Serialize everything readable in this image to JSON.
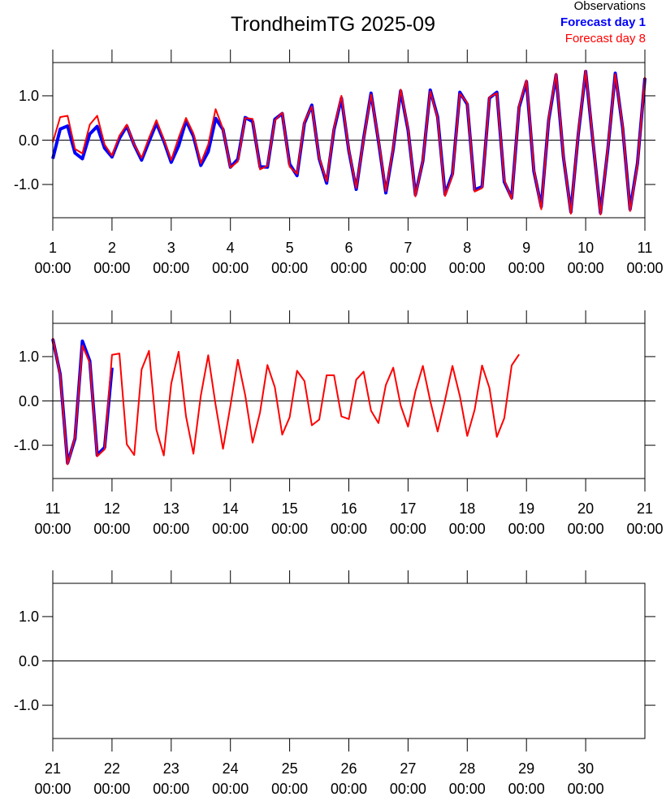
{
  "title": "TrondheimTG 2025-09",
  "legend": [
    {
      "name": "Observations",
      "color": "#000000",
      "bold": false
    },
    {
      "name": "Forecast day 1",
      "color": "#0000ff",
      "bold": true
    },
    {
      "name": "Forecast day 8",
      "color": "#ff0000",
      "bold": false
    }
  ],
  "chart_data": [
    {
      "type": "line",
      "xlim": [
        1,
        11
      ],
      "ylim": [
        -1.75,
        1.75
      ],
      "xticks": [
        {
          "value": 1,
          "label": "1\n00:00"
        },
        {
          "value": 2,
          "label": "2\n00:00"
        },
        {
          "value": 3,
          "label": "3\n00:00"
        },
        {
          "value": 4,
          "label": "4\n00:00"
        },
        {
          "value": 5,
          "label": "5\n00:00"
        },
        {
          "value": 6,
          "label": "6\n00:00"
        },
        {
          "value": 7,
          "label": "7\n00:00"
        },
        {
          "value": 8,
          "label": "8\n00:00"
        },
        {
          "value": 9,
          "label": "9\n00:00"
        },
        {
          "value": 10,
          "label": "10\n00:00"
        },
        {
          "value": 11,
          "label": "11\n00:00"
        }
      ],
      "yticks": [
        {
          "value": 1,
          "label": "1.0"
        },
        {
          "value": 0,
          "label": "0.0"
        },
        {
          "value": -1,
          "label": "-1.0"
        }
      ],
      "hlines": [
        0
      ],
      "x": [
        1,
        1.125,
        1.25,
        1.375,
        1.5,
        1.625,
        1.75,
        1.875,
        2,
        2.125,
        2.25,
        2.375,
        2.5,
        2.625,
        2.75,
        2.875,
        3,
        3.125,
        3.25,
        3.375,
        3.5,
        3.625,
        3.75,
        3.875,
        4,
        4.125,
        4.25,
        4.375,
        4.5,
        4.625,
        4.75,
        4.875,
        5,
        5.125,
        5.25,
        5.375,
        5.5,
        5.625,
        5.75,
        5.875,
        6,
        6.125,
        6.25,
        6.375,
        6.5,
        6.625,
        6.75,
        6.875,
        7,
        7.125,
        7.25,
        7.375,
        7.5,
        7.625,
        7.75,
        7.875,
        8,
        8.125,
        8.25,
        8.375,
        8.5,
        8.625,
        8.75,
        8.875,
        9,
        9.125,
        9.25,
        9.375,
        9.5,
        9.625,
        9.75,
        9.875,
        10,
        10.125,
        10.25,
        10.375,
        10.5,
        10.625,
        10.75,
        10.875,
        11
      ],
      "series": [
        {
          "name": "Forecast day 1",
          "color": "#0000ff",
          "width": 4,
          "values": [
            -0.42,
            0.25,
            0.32,
            -0.29,
            -0.42,
            0.14,
            0.31,
            -0.18,
            -0.38,
            0.04,
            0.32,
            -0.11,
            -0.45,
            -0.03,
            0.38,
            -0.02,
            -0.5,
            -0.13,
            0.44,
            0.09,
            -0.57,
            -0.26,
            0.49,
            0.24,
            -0.61,
            -0.43,
            0.51,
            0.42,
            -0.6,
            -0.61,
            0.47,
            0.6,
            -0.54,
            -0.8,
            0.38,
            0.79,
            -0.42,
            -0.97,
            0.24,
            0.95,
            -0.24,
            -1.11,
            0.04,
            1.06,
            -0.02,
            -1.19,
            -0.2,
            1.11,
            0.23,
            -1.23,
            -0.47,
            1.13,
            0.52,
            -1.22,
            -0.76,
            1.08,
            0.81,
            -1.12,
            -1.05,
            0.95,
            1.08,
            -0.94,
            -1.3,
            0.74,
            1.32,
            -0.7,
            -1.5,
            0.45,
            1.47,
            -0.39,
            -1.62,
            0.13,
            1.55,
            -0.06,
            -1.64,
            -0.2,
            1.51,
            0.27,
            -1.56,
            -0.52,
            1.4
          ]
        },
        {
          "name": "Forecast day 8",
          "color": "#ff0000",
          "width": 2,
          "values": [
            -0.05,
            0.52,
            0.55,
            -0.2,
            -0.3,
            0.35,
            0.55,
            -0.1,
            -0.35,
            0.1,
            0.35,
            -0.1,
            -0.4,
            0.05,
            0.45,
            0.02,
            -0.45,
            0.05,
            0.5,
            0.15,
            -0.52,
            -0.1,
            0.7,
            0.25,
            -0.62,
            -0.48,
            0.5,
            0.48,
            -0.66,
            -0.58,
            0.44,
            0.62,
            -0.6,
            -0.76,
            0.42,
            0.76,
            -0.4,
            -0.93,
            0.27,
            1.0,
            -0.22,
            -1.08,
            0.02,
            1.03,
            0.01,
            -1.15,
            -0.17,
            1.14,
            0.26,
            -1.27,
            -0.45,
            1.1,
            0.5,
            -1.26,
            -0.8,
            1.05,
            0.84,
            -1.16,
            -1.08,
            0.97,
            1.06,
            -0.9,
            -1.33,
            0.77,
            1.35,
            -0.66,
            -1.56,
            0.48,
            1.5,
            -0.36,
            -1.66,
            0.16,
            1.57,
            -0.03,
            -1.68,
            -0.17,
            1.49,
            0.3,
            -1.6,
            -0.55,
            1.42
          ]
        }
      ]
    },
    {
      "type": "line",
      "xlim": [
        11,
        21
      ],
      "ylim": [
        -1.75,
        1.75
      ],
      "xticks": [
        {
          "value": 11,
          "label": "11\n00:00"
        },
        {
          "value": 12,
          "label": "12\n00:00"
        },
        {
          "value": 13,
          "label": "13\n00:00"
        },
        {
          "value": 14,
          "label": "14\n00:00"
        },
        {
          "value": 15,
          "label": "15\n00:00"
        },
        {
          "value": 16,
          "label": "16\n00:00"
        },
        {
          "value": 17,
          "label": "17\n00:00"
        },
        {
          "value": 18,
          "label": "18\n00:00"
        },
        {
          "value": 19,
          "label": "19\n00:00"
        },
        {
          "value": 20,
          "label": "20\n00:00"
        },
        {
          "value": 21,
          "label": "21\n00:00"
        }
      ],
      "yticks": [
        {
          "value": 1,
          "label": "1.0"
        },
        {
          "value": 0,
          "label": "0.0"
        },
        {
          "value": -1,
          "label": "-1.0"
        }
      ],
      "hlines": [
        0
      ],
      "series": [
        {
          "name": "Forecast day 1",
          "color": "#0000ff",
          "width": 4,
          "x": [
            11,
            11.125,
            11.25,
            11.375,
            11.5,
            11.625,
            11.75,
            11.875,
            12
          ],
          "values": [
            1.4,
            0.6,
            -1.4,
            -0.85,
            1.35,
            0.9,
            -1.22,
            -1.05,
            0.75
          ]
        },
        {
          "name": "Forecast day 8",
          "color": "#ff0000",
          "width": 2,
          "x": [
            11,
            11.125,
            11.25,
            11.375,
            11.5,
            11.625,
            11.75,
            11.875,
            12,
            12.125,
            12.25,
            12.375,
            12.5,
            12.625,
            12.75,
            12.875,
            13,
            13.125,
            13.25,
            13.375,
            13.5,
            13.625,
            13.75,
            13.875,
            14,
            14.125,
            14.25,
            14.375,
            14.5,
            14.625,
            14.75,
            14.875,
            15,
            15.125,
            15.25,
            15.375,
            15.5,
            15.625,
            15.75,
            15.875,
            16,
            16.125,
            16.25,
            16.375,
            16.5,
            16.625,
            16.75,
            16.875,
            17,
            17.125,
            17.25,
            17.375,
            17.5,
            17.625,
            17.75,
            17.875,
            18,
            18.125,
            18.25,
            18.375,
            18.5,
            18.625,
            18.75,
            18.875
          ],
          "values": [
            1.42,
            0.58,
            -1.43,
            -0.82,
            1.25,
            0.86,
            -1.25,
            -1.09,
            1.04,
            1.07,
            -0.98,
            -1.22,
            0.71,
            1.13,
            -0.65,
            -1.23,
            0.39,
            1.11,
            -0.35,
            -1.19,
            0.12,
            1.03,
            -0.09,
            -1.08,
            -0.11,
            0.93,
            0.13,
            -0.94,
            -0.26,
            0.81,
            0.31,
            -0.76,
            -0.37,
            0.68,
            0.45,
            -0.55,
            -0.42,
            0.58,
            0.58,
            -0.35,
            -0.41,
            0.48,
            0.66,
            -0.22,
            -0.5,
            0.36,
            0.75,
            -0.1,
            -0.58,
            0.22,
            0.79,
            0.0,
            -0.69,
            0.02,
            0.79,
            0.11,
            -0.79,
            -0.2,
            0.8,
            0.29,
            -0.81,
            -0.39,
            0.8,
            1.05
          ]
        }
      ]
    },
    {
      "type": "line",
      "xlim": [
        21,
        31
      ],
      "ylim": [
        -1.75,
        1.75
      ],
      "xticks": [
        {
          "value": 21,
          "label": "21\n00:00"
        },
        {
          "value": 22,
          "label": "22\n00:00"
        },
        {
          "value": 23,
          "label": "23\n00:00"
        },
        {
          "value": 24,
          "label": "24\n00:00"
        },
        {
          "value": 25,
          "label": "25\n00:00"
        },
        {
          "value": 26,
          "label": "26\n00:00"
        },
        {
          "value": 27,
          "label": "27\n00:00"
        },
        {
          "value": 28,
          "label": "28\n00:00"
        },
        {
          "value": 29,
          "label": "29\n00:00"
        },
        {
          "value": 30,
          "label": "30\n00:00"
        }
      ],
      "yticks": [
        {
          "value": 1,
          "label": "1.0"
        },
        {
          "value": 0,
          "label": "0.0"
        },
        {
          "value": -1,
          "label": "-1.0"
        }
      ],
      "hlines": [
        0
      ],
      "series": []
    }
  ]
}
